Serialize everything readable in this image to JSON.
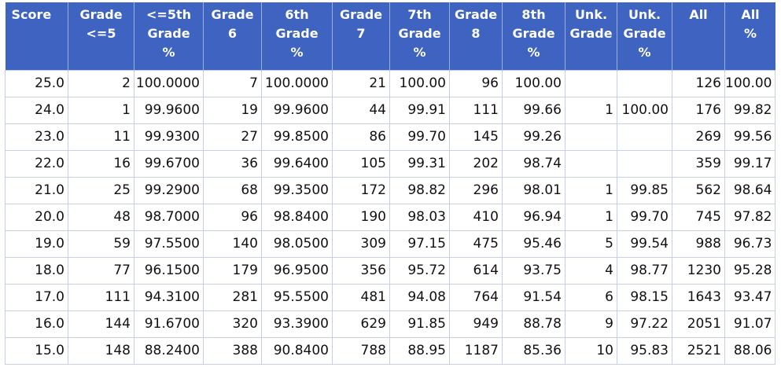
{
  "headers": [
    "Score",
    "Grade\n<=5",
    "<=5th\nGrade\n%",
    "Grade\n6",
    "6th\nGrade\n%",
    "Grade\n7",
    "7th\nGrade\n%",
    "Grade\n8",
    "8th\nGrade\n%",
    "Unk.\nGrade",
    "Unk.\nGrade\n%",
    "All",
    "All\n%"
  ],
  "rows": [
    [
      "25.0",
      "2",
      "100.0000",
      "7",
      "100.0000",
      "21",
      "100.00",
      "96",
      "100.00",
      "",
      "",
      "126",
      "100.00"
    ],
    [
      "24.0",
      "1",
      "99.9600",
      "19",
      "99.9600",
      "44",
      "99.91",
      "111",
      "99.66",
      "1",
      "100.00",
      "176",
      "99.82"
    ],
    [
      "23.0",
      "11",
      "99.9300",
      "27",
      "99.8500",
      "86",
      "99.70",
      "145",
      "99.26",
      "",
      "",
      "269",
      "99.56"
    ],
    [
      "22.0",
      "16",
      "99.6700",
      "36",
      "99.6400",
      "105",
      "99.31",
      "202",
      "98.74",
      "",
      "",
      "359",
      "99.17"
    ],
    [
      "21.0",
      "25",
      "99.2900",
      "68",
      "99.3500",
      "172",
      "98.82",
      "296",
      "98.01",
      "1",
      "99.85",
      "562",
      "98.64"
    ],
    [
      "20.0",
      "48",
      "98.7000",
      "96",
      "98.8400",
      "190",
      "98.03",
      "410",
      "96.94",
      "1",
      "99.70",
      "745",
      "97.82"
    ],
    [
      "19.0",
      "59",
      "97.5500",
      "140",
      "98.0500",
      "309",
      "97.15",
      "475",
      "95.46",
      "5",
      "99.54",
      "988",
      "96.73"
    ],
    [
      "18.0",
      "77",
      "96.1500",
      "179",
      "96.9500",
      "356",
      "95.72",
      "614",
      "93.75",
      "4",
      "98.77",
      "1230",
      "95.28"
    ],
    [
      "17.0",
      "111",
      "94.3100",
      "281",
      "95.5500",
      "481",
      "94.08",
      "764",
      "91.54",
      "6",
      "98.15",
      "1643",
      "93.47"
    ],
    [
      "16.0",
      "144",
      "91.6700",
      "320",
      "93.3900",
      "629",
      "91.85",
      "949",
      "88.78",
      "9",
      "97.22",
      "2051",
      "91.07"
    ],
    [
      "15.0",
      "148",
      "88.2400",
      "388",
      "90.8400",
      "788",
      "88.95",
      "1187",
      "85.36",
      "10",
      "95.83",
      "2521",
      "88.06"
    ]
  ],
  "colors": {
    "header_bg": "#3e63c0",
    "header_text": "#ffffff",
    "grid": "#c7cfe6"
  }
}
